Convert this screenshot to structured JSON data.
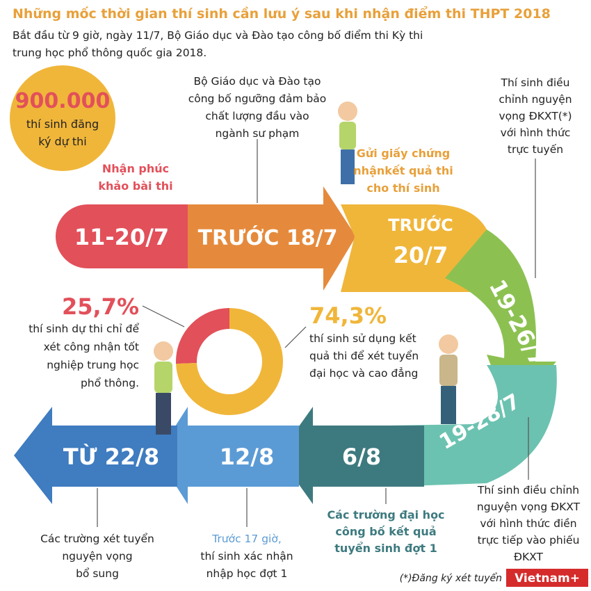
{
  "header": {
    "title": "Những mốc thời gian thí sinh cần lưu ý sau khi nhận điểm thi THPT 2018",
    "subtitle": [
      "Bắt đầu từ 9 giờ, ngày 11/7, Bộ Giáo dục và Đào tạo công bố điểm thi Kỳ thi",
      "trung học phổ thông quốc gia 2018."
    ]
  },
  "stat": {
    "value": "900.000",
    "lines": [
      "thí sinh đăng",
      "ký dự thi"
    ]
  },
  "milestones": [
    {
      "date": "11-20/7",
      "note": [
        "Nhận phúc",
        "khảo bài thi"
      ]
    },
    {
      "date": "TRƯỚC 18/7",
      "note": [
        "Bộ Giáo dục và Đào tạo",
        "công bố ngưỡng đảm bảo",
        "chất lượng đầu vào",
        "ngành sư phạm"
      ]
    },
    {
      "date": [
        "TRƯỚC",
        "20/7"
      ],
      "note": [
        "Gửi giấy chứng",
        "nhậnkết quả thi",
        "cho thí sinh"
      ]
    },
    {
      "date": "19-26/7",
      "note": [
        "Thí sinh điều",
        "chỉnh nguyện",
        "vọng ĐKXT(*)",
        "với hình thức",
        "trực tuyến"
      ]
    },
    {
      "date": "19-28/7",
      "note": [
        "Thí sinh điều chỉnh",
        "nguyện vọng ĐKXT",
        "với hình thức điền",
        "trực tiếp vào phiếu",
        "ĐKXT"
      ]
    },
    {
      "date": "6/8",
      "note": [
        "Các trường đại học",
        "công bố kết quả",
        "tuyển sinh đợt 1"
      ]
    },
    {
      "date": "12/8",
      "note": [
        "Trước 17 giờ,",
        "thí sinh xác nhận",
        "nhập học đợt 1"
      ]
    },
    {
      "date": "TỪ 22/8",
      "note": [
        "Các trường xét tuyển",
        "nguyện vọng",
        "bổ sung"
      ]
    }
  ],
  "donut": {
    "segments": [
      {
        "value": 25.7,
        "label": "25,7%",
        "color": "#e2505a",
        "lines": [
          "thí sinh dự thi chỉ để",
          "xét công nhận tốt",
          "nghiệp trung học",
          "phổ thông."
        ]
      },
      {
        "value": 74.3,
        "label": "74,3%",
        "color": "#f0b63a",
        "lines": [
          "thí sinh sử dụng kết",
          "quả thi để xét tuyển",
          "đại học và cao đẳng"
        ]
      }
    ]
  },
  "footnote": "(*)Đăng ký xét tuyển",
  "logo": "Vietnam+"
}
